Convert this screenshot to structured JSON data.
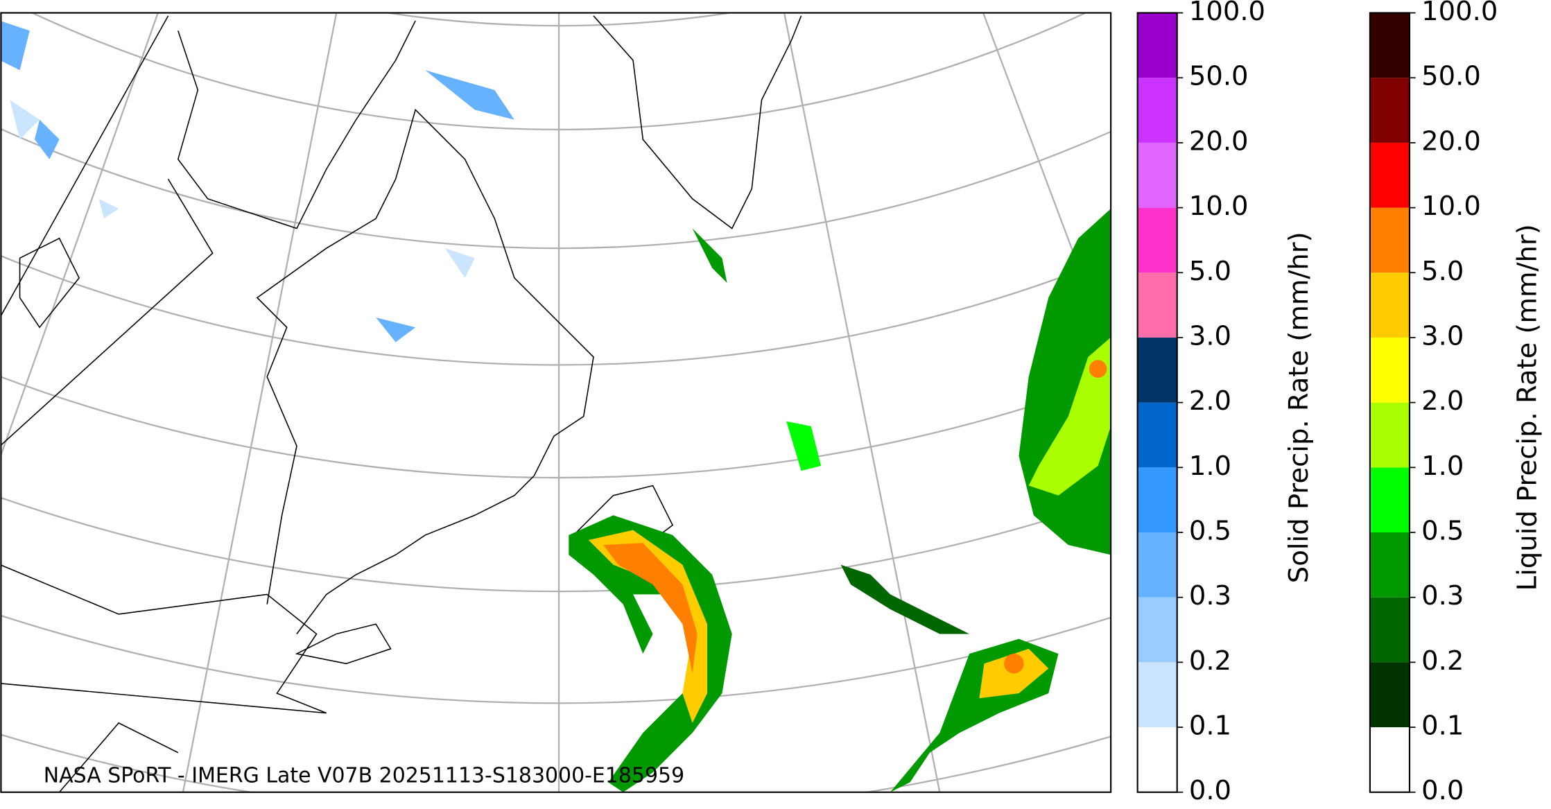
{
  "map": {
    "credit": "NASA SPoRT - IMERG Late V07B 20251113-S183000-E185959"
  },
  "colorbars": [
    {
      "label": "Solid Precip. Rate (mm/hr)",
      "ticks": [
        "0.0",
        "0.1",
        "0.2",
        "0.3",
        "0.5",
        "1.0",
        "2.0",
        "3.0",
        "5.0",
        "10.0",
        "20.0",
        "50.0",
        "100.0"
      ],
      "colors": [
        "#ffffff",
        "#cce5ff",
        "#99ccff",
        "#66b2ff",
        "#3399ff",
        "#0066cc",
        "#003366",
        "#ff6eaa",
        "#ff33cc",
        "#e066ff",
        "#cc33ff",
        "#9900cc"
      ]
    },
    {
      "label": "Liquid Precip. Rate (mm/hr)",
      "ticks": [
        "0.0",
        "0.1",
        "0.2",
        "0.3",
        "0.5",
        "1.0",
        "2.0",
        "3.0",
        "5.0",
        "10.0",
        "20.0",
        "50.0",
        "100.0"
      ],
      "colors": [
        "#ffffff",
        "#003300",
        "#006600",
        "#009900",
        "#00ff00",
        "#aaff00",
        "#ffff00",
        "#ffcc00",
        "#ff8000",
        "#ff0000",
        "#800000",
        "#330000"
      ]
    }
  ]
}
